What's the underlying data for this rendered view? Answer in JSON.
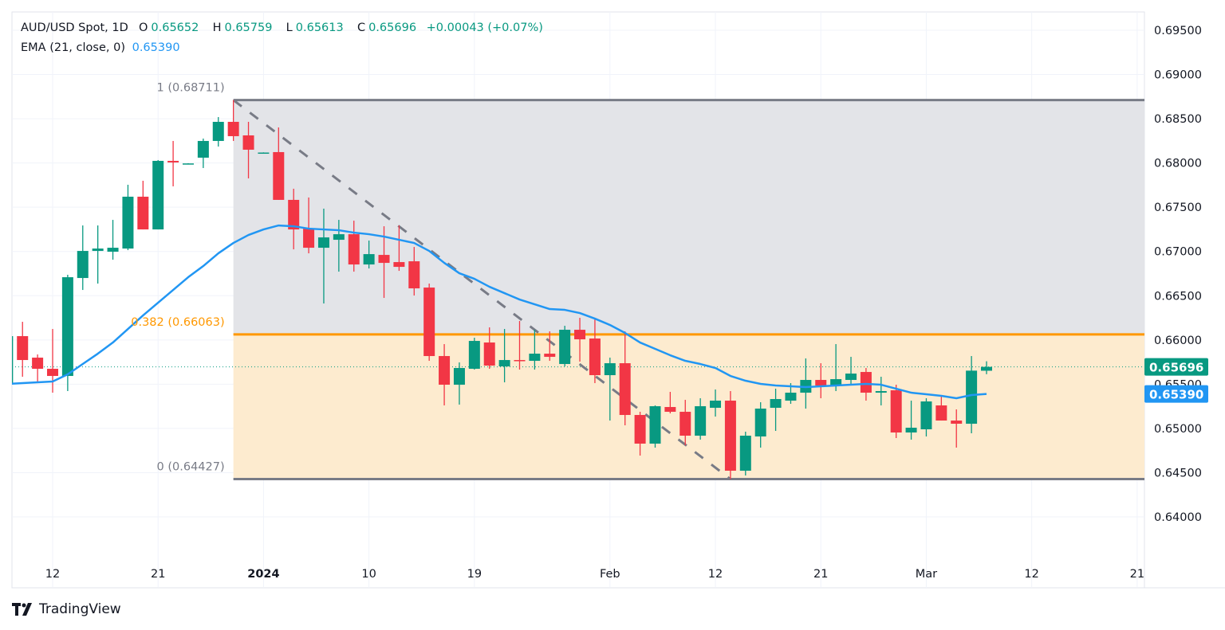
{
  "header": {
    "symbol": "AUD/USD Spot, 1D",
    "o_label": "O",
    "o": "0.65652",
    "h_label": "H",
    "h": "0.65759",
    "l_label": "L",
    "l": "0.65613",
    "c_label": "C",
    "c": "0.65696",
    "change": "+0.00043 (+0.07%)",
    "ema_label": "EMA (21, close, 0)",
    "ema_value": "0.65390"
  },
  "branding": {
    "logo_text": "TradingView"
  },
  "colors": {
    "up": "#089981",
    "down": "#f23645",
    "ema": "#2196f3",
    "fib_line": "#787b86",
    "fib_382": "#ff9800",
    "fib_upper_fill": "#e3e4e8",
    "fib_lower_fill": "#fdebcf"
  },
  "chart_data": {
    "type": "candlestick",
    "title": "AUD/USD Spot, 1D",
    "ylim": [
      0.637,
      0.697
    ],
    "y_ticks": [
      "0.69500",
      "0.69000",
      "0.68500",
      "0.68000",
      "0.67500",
      "0.67000",
      "0.66500",
      "0.66000",
      "0.65500",
      "0.65000",
      "0.64500",
      "0.64000"
    ],
    "x_ticks": [
      {
        "date": "2023-12-12",
        "label": "12"
      },
      {
        "date": "2023-12-21",
        "label": "21"
      },
      {
        "date": "2024-01-01",
        "label": "2024"
      },
      {
        "date": "2024-01-10",
        "label": "10"
      },
      {
        "date": "2024-01-19",
        "label": "19"
      },
      {
        "date": "2024-02-01",
        "label": "Feb"
      },
      {
        "date": "2024-02-12",
        "label": "12"
      },
      {
        "date": "2024-02-21",
        "label": "21"
      },
      {
        "date": "2024-03-01",
        "label": "Mar"
      },
      {
        "date": "2024-03-12",
        "label": "12"
      },
      {
        "date": "2024-03-21",
        "label": "21"
      }
    ],
    "grid": true,
    "dates": [
      "2023-12-07",
      "2023-12-08",
      "2023-12-11",
      "2023-12-12",
      "2023-12-13",
      "2023-12-14",
      "2023-12-15",
      "2023-12-18",
      "2023-12-19",
      "2023-12-20",
      "2023-12-21",
      "2023-12-22",
      "2023-12-25",
      "2023-12-26",
      "2023-12-27",
      "2023-12-28",
      "2023-12-29",
      "2024-01-01",
      "2024-01-02",
      "2024-01-03",
      "2024-01-04",
      "2024-01-05",
      "2024-01-08",
      "2024-01-09",
      "2024-01-10",
      "2024-01-11",
      "2024-01-12",
      "2024-01-15",
      "2024-01-16",
      "2024-01-17",
      "2024-01-18",
      "2024-01-19",
      "2024-01-22",
      "2024-01-23",
      "2024-01-24",
      "2024-01-25",
      "2024-01-26",
      "2024-01-29",
      "2024-01-30",
      "2024-01-31",
      "2024-02-01",
      "2024-02-02",
      "2024-02-05",
      "2024-02-06",
      "2024-02-07",
      "2024-02-08",
      "2024-02-09",
      "2024-02-12",
      "2024-02-13",
      "2024-02-14",
      "2024-02-15",
      "2024-02-16",
      "2024-02-19",
      "2024-02-20",
      "2024-02-21",
      "2024-02-22",
      "2024-02-23",
      "2024-02-26",
      "2024-02-27",
      "2024-02-28",
      "2024-02-29",
      "2024-03-01",
      "2024-03-04",
      "2024-03-05",
      "2024-03-06",
      "2024-03-07"
    ],
    "ohlc": [
      [
        0.65503,
        0.6605,
        0.65503,
        0.66043
      ],
      [
        0.66043,
        0.66205,
        0.65584,
        0.65773
      ],
      [
        0.658,
        0.65836,
        0.65512,
        0.65674
      ],
      [
        0.65674,
        0.66124,
        0.65404,
        0.65593
      ],
      [
        0.65593,
        0.66736,
        0.65422,
        0.66709
      ],
      [
        0.667,
        0.67294,
        0.66565,
        0.67006
      ],
      [
        0.67006,
        0.67294,
        0.66637,
        0.67033
      ],
      [
        0.66997,
        0.67357,
        0.66907,
        0.67042
      ],
      [
        0.67033,
        0.67754,
        0.67015,
        0.67619
      ],
      [
        0.67619,
        0.67799,
        0.67249,
        0.67249
      ],
      [
        0.67249,
        0.68033,
        0.67249,
        0.68024
      ],
      [
        0.68024,
        0.68249,
        0.67736,
        0.68006
      ],
      [
        0.67988,
        0.67997,
        0.67985,
        0.67995
      ],
      [
        0.6806,
        0.68276,
        0.67943,
        0.68249
      ],
      [
        0.68249,
        0.68519,
        0.68186,
        0.68465
      ],
      [
        0.68465,
        0.68711,
        0.68249,
        0.68303
      ],
      [
        0.68312,
        0.68465,
        0.67826,
        0.6815
      ],
      [
        0.68114,
        0.6812,
        0.6811,
        0.68118
      ],
      [
        0.68123,
        0.68402,
        0.67583,
        0.67583
      ],
      [
        0.67583,
        0.67709,
        0.67024,
        0.67249
      ],
      [
        0.67258,
        0.6761,
        0.66979,
        0.67042
      ],
      [
        0.67042,
        0.67484,
        0.66412,
        0.67159
      ],
      [
        0.67132,
        0.67357,
        0.66772,
        0.67195
      ],
      [
        0.67195,
        0.67348,
        0.66772,
        0.66853
      ],
      [
        0.66853,
        0.67123,
        0.66808,
        0.6697
      ],
      [
        0.66961,
        0.67285,
        0.66475,
        0.66871
      ],
      [
        0.6688,
        0.67294,
        0.66781,
        0.66826
      ],
      [
        0.66889,
        0.67051,
        0.66502,
        0.66583
      ],
      [
        0.66592,
        0.66637,
        0.65764,
        0.65818
      ],
      [
        0.65818,
        0.65953,
        0.6526,
        0.65494
      ],
      [
        0.65494,
        0.65746,
        0.65269,
        0.65683
      ],
      [
        0.65674,
        0.66025,
        0.65665,
        0.65989
      ],
      [
        0.65971,
        0.66142,
        0.65674,
        0.6571
      ],
      [
        0.65701,
        0.66124,
        0.65521,
        0.65773
      ],
      [
        0.65773,
        0.66214,
        0.65665,
        0.65764
      ],
      [
        0.65764,
        0.66115,
        0.65665,
        0.65845
      ],
      [
        0.65845,
        0.66097,
        0.65764,
        0.65809
      ],
      [
        0.65728,
        0.6616,
        0.65701,
        0.66115
      ],
      [
        0.66115,
        0.6625,
        0.65755,
        0.66007
      ],
      [
        0.66016,
        0.66232,
        0.65512,
        0.65602
      ],
      [
        0.65602,
        0.658,
        0.65089,
        0.65737
      ],
      [
        0.65737,
        0.66097,
        0.65035,
        0.65152
      ],
      [
        0.65152,
        0.65188,
        0.64693,
        0.64828
      ],
      [
        0.64828,
        0.6526,
        0.64783,
        0.65251
      ],
      [
        0.65242,
        0.65413,
        0.6517,
        0.65188
      ],
      [
        0.65188,
        0.65323,
        0.6481,
        0.64918
      ],
      [
        0.64918,
        0.65341,
        0.64873,
        0.65251
      ],
      [
        0.65233,
        0.6544,
        0.65134,
        0.65314
      ],
      [
        0.65314,
        0.65422,
        0.64427,
        0.64522
      ],
      [
        0.64522,
        0.64963,
        0.64468,
        0.64918
      ],
      [
        0.64909,
        0.65296,
        0.64783,
        0.65224
      ],
      [
        0.65233,
        0.65449,
        0.64972,
        0.65332
      ],
      [
        0.65314,
        0.65512,
        0.65278,
        0.65404
      ],
      [
        0.65404,
        0.65791,
        0.65224,
        0.65548
      ],
      [
        0.65548,
        0.65737,
        0.65341,
        0.65485
      ],
      [
        0.65485,
        0.65953,
        0.65422,
        0.65557
      ],
      [
        0.65548,
        0.65809,
        0.65503,
        0.6562
      ],
      [
        0.65638,
        0.65683,
        0.65314,
        0.65404
      ],
      [
        0.65404,
        0.65584,
        0.6526,
        0.65422
      ],
      [
        0.65431,
        0.65494,
        0.64891,
        0.64954
      ],
      [
        0.64954,
        0.65314,
        0.64873,
        0.65008
      ],
      [
        0.6499,
        0.65341,
        0.64909,
        0.65305
      ],
      [
        0.6526,
        0.65359,
        0.65089,
        0.65089
      ],
      [
        0.65089,
        0.65215,
        0.64783,
        0.65053
      ],
      [
        0.65053,
        0.65818,
        0.64945,
        0.65653
      ],
      [
        0.65652,
        0.65759,
        0.65613,
        0.65696
      ]
    ],
    "ema21": [
      0.65503,
      0.65512,
      0.65521,
      0.6553,
      0.65611,
      0.65728,
      0.65845,
      0.65971,
      0.66124,
      0.66277,
      0.66421,
      0.66565,
      0.66709,
      0.66835,
      0.66979,
      0.67096,
      0.67186,
      0.67249,
      0.67294,
      0.67285,
      0.67258,
      0.67249,
      0.6724,
      0.67213,
      0.67195,
      0.67168,
      0.67132,
      0.67096,
      0.67006,
      0.66871,
      0.66754,
      0.66691,
      0.66601,
      0.66529,
      0.66457,
      0.66403,
      0.66349,
      0.6634,
      0.66304,
      0.66241,
      0.66169,
      0.66079,
      0.65971,
      0.65899,
      0.65827,
      0.65764,
      0.65728,
      0.65683,
      0.65593,
      0.65539,
      0.65503,
      0.65485,
      0.65476,
      0.65467,
      0.65476,
      0.65485,
      0.65494,
      0.65503,
      0.65494,
      0.65449,
      0.65404,
      0.65386,
      0.65368,
      0.65341,
      0.65377,
      0.6539
    ],
    "fibonacci": {
      "start_date": "2023-12-28",
      "levels": [
        {
          "ratio": 1,
          "price": 0.68711,
          "label": "1 (0.68711)"
        },
        {
          "ratio": 0.382,
          "price": 0.66063,
          "label": "0.382 (0.66063)"
        },
        {
          "ratio": 0,
          "price": 0.64427,
          "label": "0 (0.64427)"
        }
      ]
    },
    "trend_line": {
      "from": {
        "date": "2023-12-28",
        "price": 0.68711
      },
      "to": {
        "date": "2024-02-13",
        "price": 0.64427
      },
      "style": "dashed"
    },
    "last_price": {
      "value": 0.65696,
      "label": "0.65696"
    },
    "ema_last": {
      "value": 0.6539,
      "label": "0.65390"
    }
  }
}
